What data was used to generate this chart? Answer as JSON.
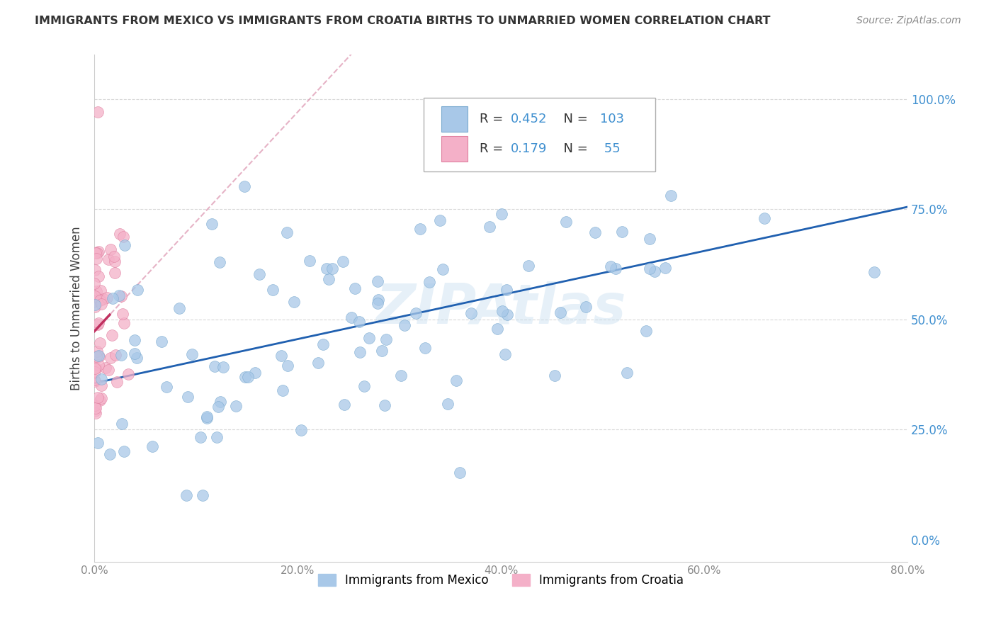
{
  "title": "IMMIGRANTS FROM MEXICO VS IMMIGRANTS FROM CROATIA BIRTHS TO UNMARRIED WOMEN CORRELATION CHART",
  "source": "Source: ZipAtlas.com",
  "ylabel": "Births to Unmarried Women",
  "xlim": [
    0.0,
    0.8
  ],
  "ylim": [
    -0.05,
    1.1
  ],
  "watermark": "ZIPAtlas",
  "mexico_color": "#a8c8e8",
  "mexico_edge": "#7aaad0",
  "croatia_color": "#f4b0c8",
  "croatia_edge": "#e080a0",
  "mexico_line_color": "#2060b0",
  "croatia_line_color": "#c03060",
  "croatia_dash_color": "#e0a0b8",
  "R_mexico": 0.452,
  "N_mexico": 103,
  "R_croatia": 0.179,
  "N_croatia": 55,
  "legend_R_color": "#4090d0",
  "ytick_color": "#4090d0",
  "xtick_color": "#888888",
  "grid_color": "#d8d8d8",
  "title_color": "#333333",
  "source_color": "#888888"
}
